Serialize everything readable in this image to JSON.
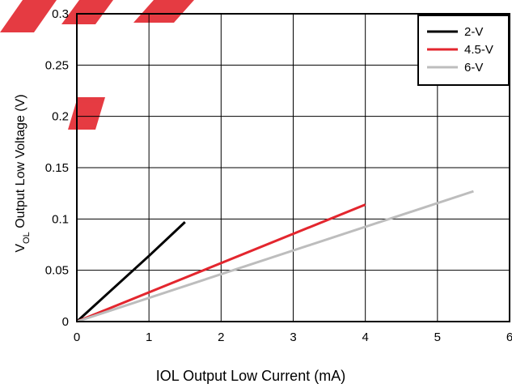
{
  "chart_data": {
    "type": "line",
    "title": "",
    "xlabel": "IOL Output Low Current (mA)",
    "ylabel_main": "V",
    "ylabel_sub": "OL",
    "ylabel_rest": " Output Low Voltage (V)",
    "xlim": [
      0,
      6
    ],
    "ylim": [
      0,
      0.3
    ],
    "x_ticks": [
      "0",
      "1",
      "2",
      "3",
      "4",
      "5",
      "6"
    ],
    "y_ticks": [
      "0",
      "0.05",
      "0.1",
      "0.15",
      "0.2",
      "0.25",
      "0.3"
    ],
    "grid": true,
    "legend_position": "top-right",
    "series": [
      {
        "name": "2-V",
        "color": "#000000",
        "x": [
          0,
          1,
          1.5
        ],
        "y": [
          0,
          0.064,
          0.097
        ]
      },
      {
        "name": "4.5-V",
        "color": "#e3262e",
        "x": [
          0,
          4
        ],
        "y": [
          0,
          0.114
        ]
      },
      {
        "name": "6-V",
        "color": "#bdbdbd",
        "x": [
          0,
          5.5
        ],
        "y": [
          0,
          0.127
        ]
      }
    ]
  }
}
